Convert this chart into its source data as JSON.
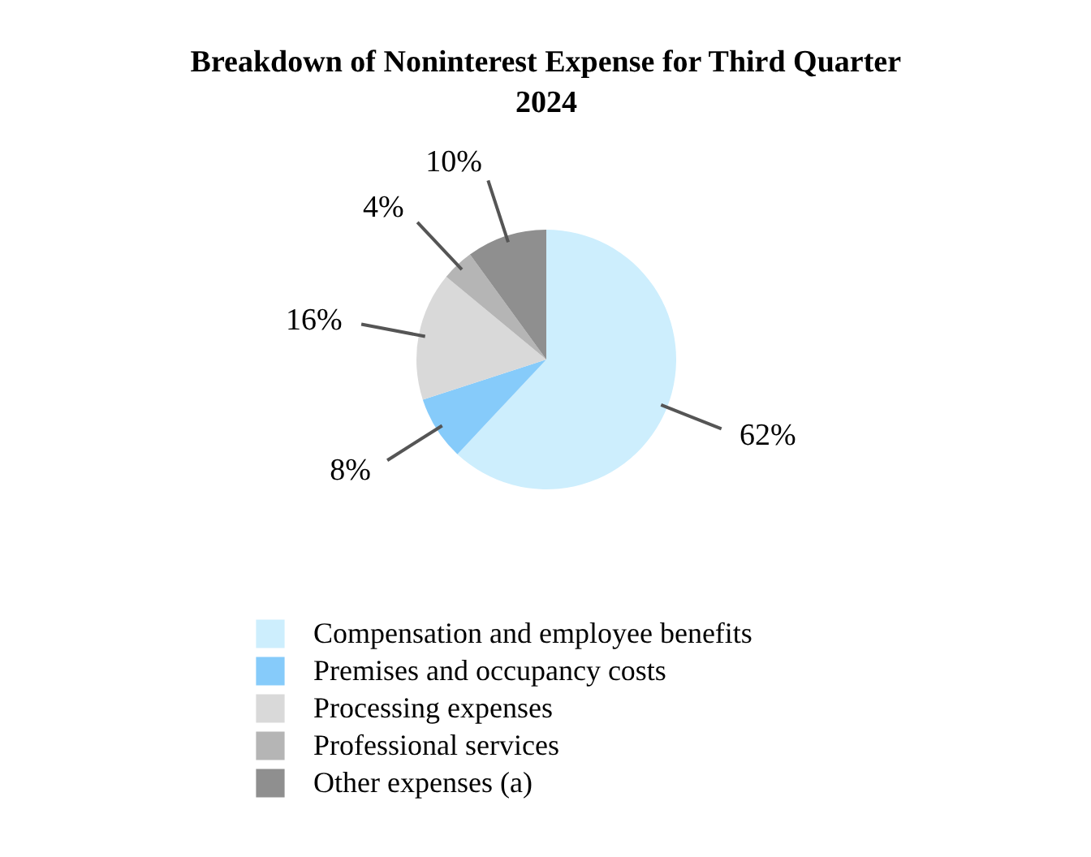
{
  "chart_data": {
    "type": "pie",
    "title": "Breakdown of Noninterest Expense for Third Quarter 2024",
    "categories": [
      "Compensation and employee benefits",
      "Premises and occupancy costs",
      "Processing expenses",
      "Professional services",
      "Other expenses (a)"
    ],
    "values": [
      62,
      8,
      16,
      4,
      10
    ],
    "colors": [
      "#cdeefd",
      "#86cbfa",
      "#d9d9d9",
      "#b5b5b5",
      "#8f8f8f"
    ],
    "value_labels": [
      "62%",
      "8%",
      "16%",
      "4%",
      "10%"
    ],
    "legend": "bottom"
  }
}
